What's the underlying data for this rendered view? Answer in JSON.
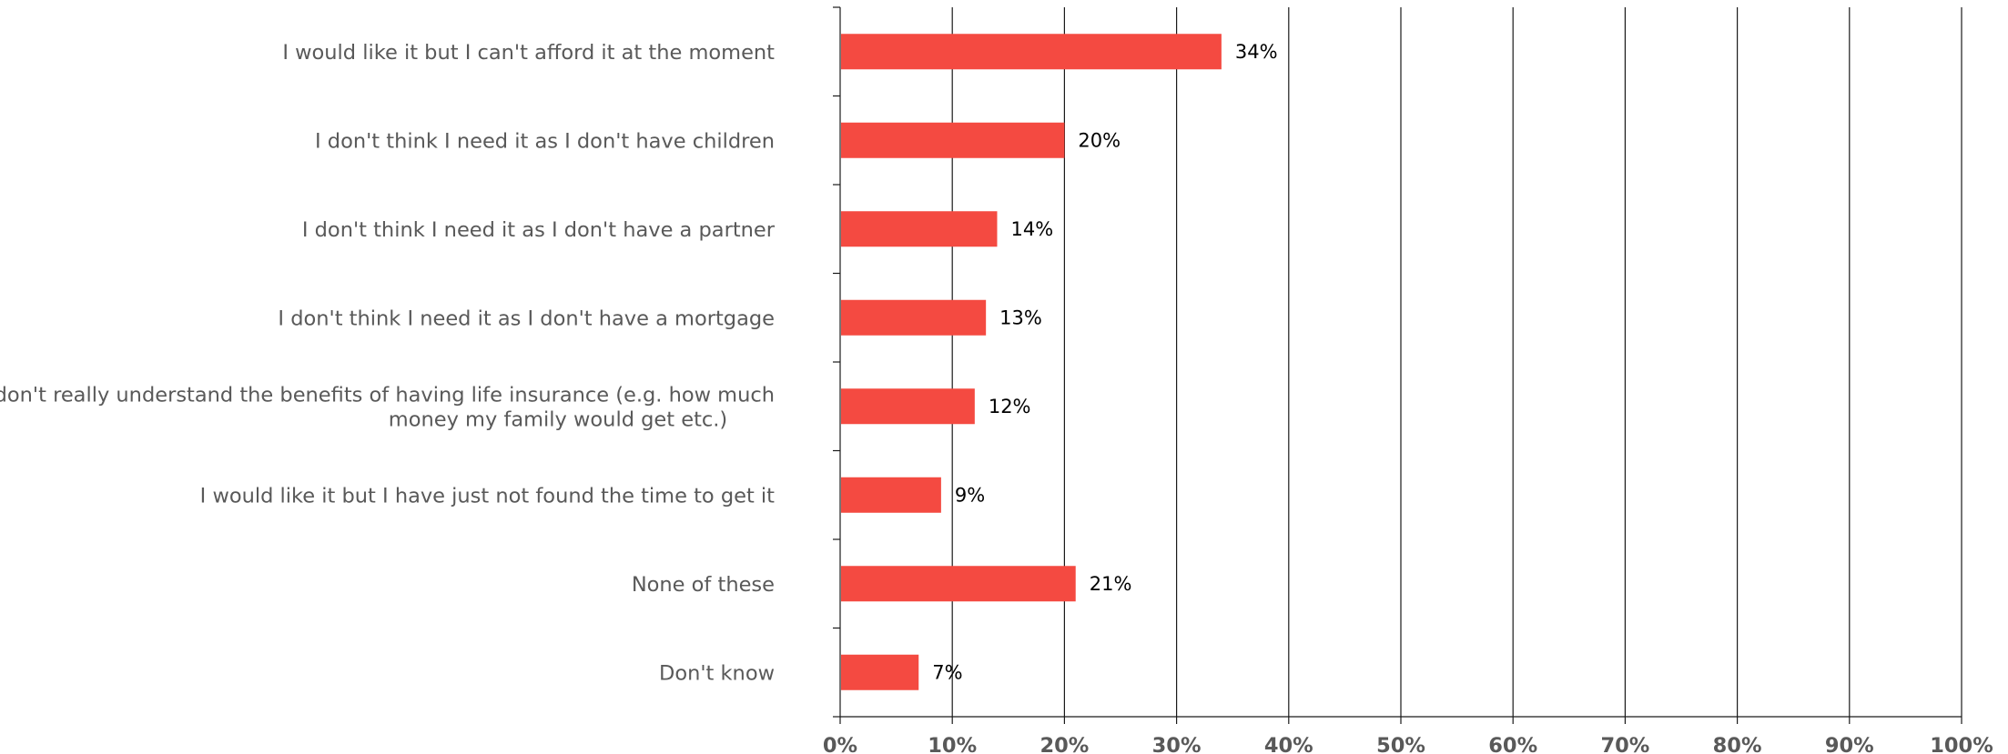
{
  "chart_data": {
    "type": "bar",
    "orientation": "horizontal",
    "categories": [
      "I would like it but I can't afford it at the moment",
      "I don't think I need it as I don't have children",
      "I don't think I need it as I don't have a partner",
      "I don't think I need it as I don't have a mortgage",
      "I don't really understand the benefits of having life insurance (e.g. how much money my family would get etc.)",
      "I would like it but I have just not found the time to get it",
      "None of these",
      "Don't know"
    ],
    "category_lines": [
      [
        "I would like it but I can't afford it at the moment"
      ],
      [
        "I don't think I need it as I don't have children"
      ],
      [
        "I don't think I need it as I don't have a partner"
      ],
      [
        "I don't think I need it as I don't have a mortgage"
      ],
      [
        "I don't really understand the benefits of having life insurance (e.g. how much",
        "money my family would get etc.)"
      ],
      [
        "I would like it but I have just not found the time to get it"
      ],
      [
        "None of these"
      ],
      [
        "Don't know"
      ]
    ],
    "values": [
      34,
      20,
      14,
      13,
      12,
      9,
      21,
      7
    ],
    "data_labels": [
      "34%",
      "20%",
      "14%",
      "13%",
      "12%",
      "9%",
      "21%",
      "7%"
    ],
    "x_ticks": [
      "0%",
      "10%",
      "20%",
      "30%",
      "40%",
      "50%",
      "60%",
      "70%",
      "80%",
      "90%",
      "100%"
    ],
    "xlim": [
      0,
      100
    ],
    "grid": true,
    "bar_color": "#f44a41",
    "title": "",
    "xlabel": "",
    "ylabel": ""
  }
}
